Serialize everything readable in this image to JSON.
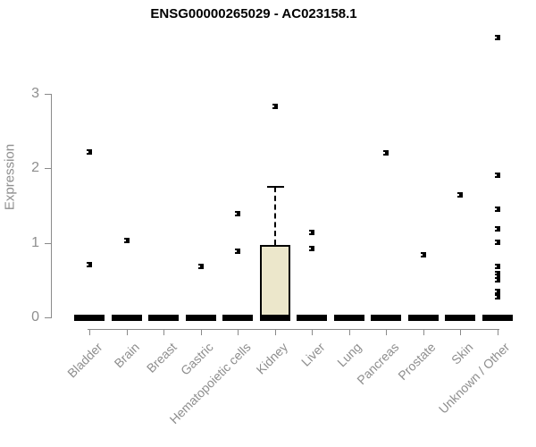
{
  "chart_data": {
    "type": "boxplot",
    "title": "ENSG00000265029 - AC023158.1",
    "ylabel": "Expression",
    "xlabel": "",
    "yticks": [
      0,
      1,
      2,
      3
    ],
    "ylim": [
      0,
      3.9
    ],
    "grid": false,
    "legend": "none",
    "categories": [
      "Bladder",
      "Brain",
      "Breast",
      "Gastric",
      "Hematopoietic cells",
      "Kidney",
      "Liver",
      "Lung",
      "Pancreas",
      "Prostate",
      "Skin",
      "Unknown / Other"
    ],
    "boxes": [
      {
        "category": "Bladder",
        "whisker_low": 0,
        "q1": 0,
        "median": 0,
        "q3": 0,
        "whisker_high": 0,
        "outliers": [
          2.22,
          0.71
        ]
      },
      {
        "category": "Brain",
        "whisker_low": 0,
        "q1": 0,
        "median": 0,
        "q3": 0,
        "whisker_high": 0,
        "outliers": [
          1.03
        ]
      },
      {
        "category": "Breast",
        "whisker_low": 0,
        "q1": 0,
        "median": 0,
        "q3": 0,
        "whisker_high": 0,
        "outliers": []
      },
      {
        "category": "Gastric",
        "whisker_low": 0,
        "q1": 0,
        "median": 0,
        "q3": 0,
        "whisker_high": 0,
        "outliers": [
          0.68
        ]
      },
      {
        "category": "Hematopoietic cells",
        "whisker_low": 0,
        "q1": 0,
        "median": 0,
        "q3": 0,
        "whisker_high": 0,
        "outliers": [
          1.39,
          0.89
        ]
      },
      {
        "category": "Kidney",
        "whisker_low": 0,
        "q1": 0,
        "median": 0,
        "q3": 0.97,
        "whisker_high": 1.75,
        "outliers": [
          2.83
        ]
      },
      {
        "category": "Liver",
        "whisker_low": 0,
        "q1": 0,
        "median": 0,
        "q3": 0,
        "whisker_high": 0,
        "outliers": [
          1.14,
          0.92
        ]
      },
      {
        "category": "Lung",
        "whisker_low": 0,
        "q1": 0,
        "median": 0,
        "q3": 0,
        "whisker_high": 0,
        "outliers": []
      },
      {
        "category": "Pancreas",
        "whisker_low": 0,
        "q1": 0,
        "median": 0,
        "q3": 0,
        "whisker_high": 0,
        "outliers": [
          2.21
        ]
      },
      {
        "category": "Prostate",
        "whisker_low": 0,
        "q1": 0,
        "median": 0,
        "q3": 0,
        "whisker_high": 0,
        "outliers": [
          0.84
        ]
      },
      {
        "category": "Skin",
        "whisker_low": 0,
        "q1": 0,
        "median": 0,
        "q3": 0,
        "whisker_high": 0,
        "outliers": [
          1.64
        ]
      },
      {
        "category": "Unknown / Other",
        "whisker_low": 0,
        "q1": 0,
        "median": 0,
        "q3": 0,
        "whisker_high": 0,
        "outliers": [
          3.76,
          1.91,
          1.45,
          1.19,
          1.01,
          0.68,
          0.59,
          0.55,
          0.5,
          0.35,
          0.28
        ]
      }
    ],
    "colors": {
      "box_fill": "#ece7cb",
      "box_border": "#000000",
      "median": "#000000",
      "whisker": "#000000",
      "outlier": "#000000",
      "axis": "#8a8a8a",
      "tick_label": "#8e8e8e",
      "title": "#000000",
      "background": "#ffffff"
    }
  }
}
